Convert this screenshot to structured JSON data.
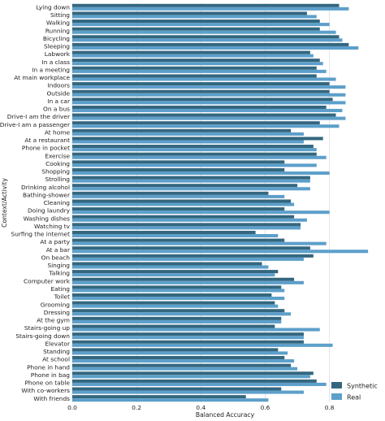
{
  "chart_data": {
    "type": "bar",
    "orientation": "horizontal",
    "title": "",
    "xlabel": "Balanced Accuracy",
    "ylabel": "Context/Activity",
    "xlim": [
      0,
      0.95
    ],
    "xticks": [
      "0.0",
      "0.2",
      "0.4",
      "0.6",
      "0.8"
    ],
    "xtick_values": [
      0.0,
      0.2,
      0.4,
      0.6,
      0.8
    ],
    "grid": true,
    "legend_position": "bottom-right",
    "categories": [
      "Lying down",
      "Sitting",
      "Walking",
      "Running",
      "Bicycling",
      "Sleeping",
      "Labwork",
      "In a class",
      "In a meeting",
      "At main workplace",
      "Indoors",
      "Outside",
      "In a car",
      "On a bus",
      "Drive-I am the driver",
      "Drive-I am a passenger",
      "At home",
      "At a restaurant",
      "Phone in pocket",
      "Exercise",
      "Cooking",
      "Shopping",
      "Strolling",
      "Drinking alcohol",
      "Bathing-shower",
      "Cleaning",
      "Doing laundry",
      "Washing dishes",
      "Watching tv",
      "Surfing the internet",
      "At a party",
      "At a bar",
      "On beach",
      "Singing",
      "Talking",
      "Computer work",
      "Eating",
      "Toilet",
      "Grooming",
      "Dressing",
      "At the gym",
      "Stairs-going up",
      "Stairs-going down",
      "Elevator",
      "Standing",
      "At school",
      "Phone in hand",
      "Phone in bag",
      "Phone on table",
      "With co-workers",
      "With friends"
    ],
    "series": [
      {
        "name": "Synthetic",
        "color": "#34677f",
        "values": [
          0.83,
          0.73,
          0.77,
          0.77,
          0.83,
          0.86,
          0.74,
          0.77,
          0.76,
          0.76,
          0.8,
          0.8,
          0.81,
          0.79,
          0.82,
          0.77,
          0.68,
          0.78,
          0.75,
          0.76,
          0.66,
          0.66,
          0.74,
          0.7,
          0.61,
          0.68,
          0.66,
          0.69,
          0.71,
          0.57,
          0.66,
          0.74,
          0.75,
          0.59,
          0.64,
          0.69,
          0.65,
          0.62,
          0.63,
          0.66,
          0.65,
          0.63,
          0.72,
          0.72,
          0.64,
          0.66,
          0.68,
          0.75,
          0.76,
          0.65,
          0.54
        ]
      },
      {
        "name": "Real",
        "color": "#5d9fca",
        "values": [
          0.86,
          0.76,
          0.8,
          0.82,
          0.84,
          0.89,
          0.75,
          0.78,
          0.79,
          0.82,
          0.85,
          0.85,
          0.85,
          0.84,
          0.85,
          0.83,
          0.72,
          0.72,
          0.76,
          0.79,
          0.76,
          0.8,
          0.74,
          0.74,
          0.66,
          0.69,
          0.8,
          0.73,
          0.71,
          0.64,
          0.79,
          0.92,
          0.72,
          0.61,
          0.63,
          0.72,
          0.66,
          0.66,
          0.64,
          0.68,
          0.65,
          0.77,
          0.72,
          0.81,
          0.67,
          0.69,
          0.7,
          0.74,
          0.79,
          0.72,
          0.61
        ]
      }
    ]
  }
}
